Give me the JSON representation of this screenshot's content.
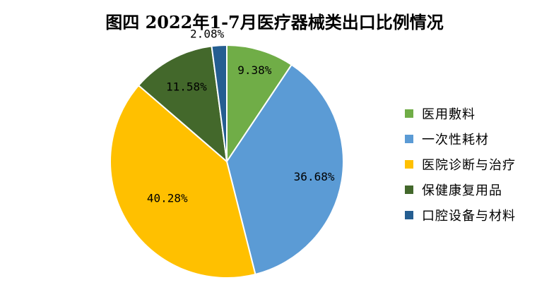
{
  "chart_data": {
    "type": "pie",
    "title": "图四 2022年1-7月医疗器械类出口比例情况",
    "slices": [
      {
        "label": "医用敷料",
        "value": 9.38,
        "display": "9.38%",
        "color": "#70ad47"
      },
      {
        "label": "一次性耗材",
        "value": 36.68,
        "display": "36.68%",
        "color": "#5b9bd5"
      },
      {
        "label": "医院诊断与治疗",
        "value": 40.28,
        "display": "40.28%",
        "color": "#ffc000"
      },
      {
        "label": "保健康复用品",
        "value": 11.58,
        "display": "11.58%",
        "color": "#43682b"
      },
      {
        "label": "口腔设备与材料",
        "value": 2.08,
        "display": "2.08%",
        "color": "#255e91"
      }
    ],
    "legend_position": "right",
    "start_angle": "12 o'clock, clockwise"
  }
}
